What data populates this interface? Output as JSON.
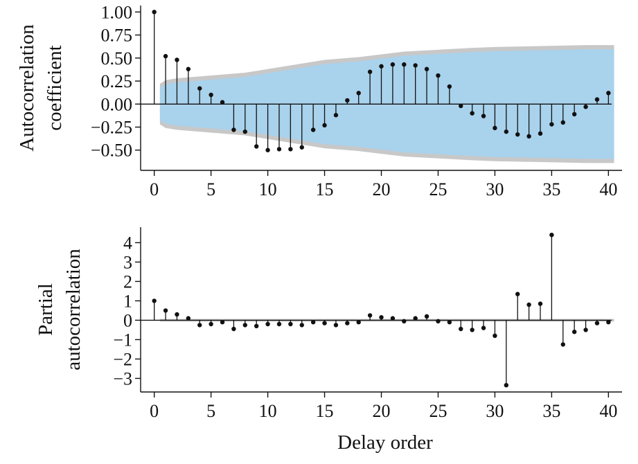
{
  "colors": {
    "band_blue": "#a9d2ec",
    "band_gray": "#c8c8c8",
    "stem": "#111111",
    "axis": "#111111"
  },
  "chart_data": [
    {
      "type": "stem",
      "title": "",
      "xlabel": "",
      "ylabel_lines": [
        "Autocorrelation",
        "coefficient"
      ],
      "xlim": [
        -1.2,
        41.2
      ],
      "ylim": [
        -0.72,
        1.07
      ],
      "xticks": [
        0,
        5,
        10,
        15,
        20,
        25,
        30,
        35,
        40
      ],
      "xtick_labels": [
        "0",
        "5",
        "10",
        "15",
        "20",
        "25",
        "30",
        "35",
        "40"
      ],
      "yticks": [
        1.0,
        0.75,
        0.5,
        0.25,
        0.0,
        -0.25,
        -0.5
      ],
      "ytick_labels": [
        "1.00",
        "0.75",
        "0.50",
        "0.25",
        "0.00",
        "−0.25",
        "−0.50"
      ],
      "lags": [
        0,
        1,
        2,
        3,
        4,
        5,
        6,
        7,
        8,
        9,
        10,
        11,
        12,
        13,
        14,
        15,
        16,
        17,
        18,
        19,
        20,
        21,
        22,
        23,
        24,
        25,
        26,
        27,
        28,
        29,
        30,
        31,
        32,
        33,
        34,
        35,
        36,
        37,
        38,
        39,
        40
      ],
      "values": [
        1.0,
        0.52,
        0.48,
        0.38,
        0.17,
        0.1,
        0.02,
        -0.28,
        -0.3,
        -0.46,
        -0.5,
        -0.49,
        -0.49,
        -0.47,
        -0.28,
        -0.23,
        -0.12,
        0.04,
        0.12,
        0.35,
        0.41,
        0.43,
        0.43,
        0.42,
        0.38,
        0.31,
        0.19,
        -0.02,
        -0.1,
        -0.13,
        -0.26,
        -0.3,
        -0.33,
        -0.35,
        -0.32,
        -0.22,
        -0.2,
        -0.11,
        -0.03,
        0.05,
        0.12
      ],
      "confidence_band": {
        "lags": [
          0.5,
          1,
          2,
          5,
          8,
          12,
          15,
          18,
          20,
          22,
          25,
          28,
          30,
          34,
          38,
          40.5
        ],
        "upper": [
          0.22,
          0.26,
          0.28,
          0.31,
          0.34,
          0.42,
          0.48,
          0.51,
          0.54,
          0.57,
          0.59,
          0.61,
          0.62,
          0.63,
          0.64,
          0.64
        ],
        "lower": [
          -0.22,
          -0.26,
          -0.28,
          -0.31,
          -0.34,
          -0.42,
          -0.48,
          -0.51,
          -0.54,
          -0.57,
          -0.59,
          -0.61,
          -0.62,
          -0.63,
          -0.64,
          -0.64
        ]
      }
    },
    {
      "type": "stem",
      "title": "",
      "xlabel": "Delay order",
      "ylabel_lines": [
        "Partial",
        "autocorrelation"
      ],
      "xlim": [
        -1.2,
        41.2
      ],
      "ylim": [
        -3.7,
        4.8
      ],
      "xticks": [
        0,
        5,
        10,
        15,
        20,
        25,
        30,
        35,
        40
      ],
      "xtick_labels": [
        "0",
        "5",
        "10",
        "15",
        "20",
        "25",
        "30",
        "35",
        "40"
      ],
      "yticks": [
        4,
        3,
        2,
        1,
        0,
        -1,
        -2,
        -3
      ],
      "ytick_labels": [
        "4",
        "3",
        "2",
        "1",
        "0",
        "−1",
        "−2",
        "−3"
      ],
      "lags": [
        0,
        1,
        2,
        3,
        4,
        5,
        6,
        7,
        8,
        9,
        10,
        11,
        12,
        13,
        14,
        15,
        16,
        17,
        18,
        19,
        20,
        21,
        22,
        23,
        24,
        25,
        26,
        27,
        28,
        29,
        30,
        31,
        32,
        33,
        34,
        35,
        36,
        37,
        38,
        39,
        40
      ],
      "values": [
        1.0,
        0.5,
        0.3,
        0.1,
        -0.25,
        -0.2,
        -0.1,
        -0.45,
        -0.25,
        -0.3,
        -0.2,
        -0.2,
        -0.2,
        -0.25,
        -0.1,
        -0.15,
        -0.25,
        -0.15,
        -0.1,
        0.25,
        0.15,
        0.1,
        -0.05,
        0.1,
        0.2,
        -0.05,
        -0.1,
        -0.45,
        -0.5,
        -0.4,
        -0.8,
        -3.35,
        1.35,
        0.8,
        0.85,
        4.4,
        -1.25,
        -0.6,
        -0.5,
        -0.15,
        -0.1
      ],
      "confidence_band": {
        "lags": [
          0.5,
          40.5
        ],
        "upper": [
          0.07,
          0.07
        ],
        "lower": [
          -0.07,
          -0.07
        ]
      }
    }
  ]
}
